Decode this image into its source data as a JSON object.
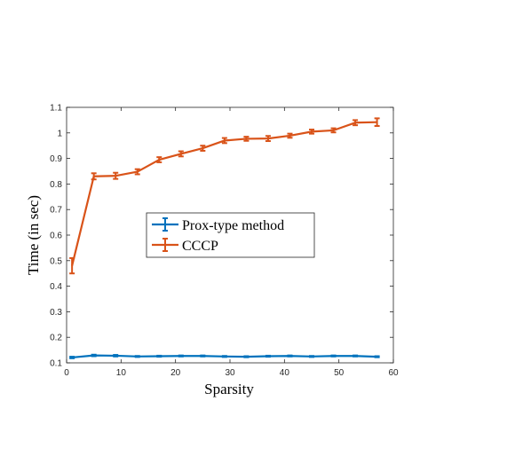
{
  "chart_data": {
    "type": "line",
    "title": "",
    "xlabel": "Sparsity",
    "ylabel": "Time (in sec)",
    "xlim": [
      0,
      60
    ],
    "ylim": [
      0.1,
      1.1
    ],
    "xticks": [
      "0",
      "10",
      "20",
      "30",
      "40",
      "50",
      "60"
    ],
    "yticks": [
      "0.1",
      "0.2",
      "0.3",
      "0.4",
      "0.5",
      "0.6",
      "0.7",
      "0.8",
      "0.9",
      "1",
      "1.1"
    ],
    "grid": false,
    "legend_position": "center-left",
    "x": [
      1,
      5,
      9,
      13,
      17,
      21,
      25,
      29,
      33,
      37,
      41,
      45,
      49,
      53,
      57
    ],
    "series": [
      {
        "name": "Prox-type method",
        "color": "#0072BD",
        "values": [
          0.121,
          0.129,
          0.128,
          0.125,
          0.126,
          0.127,
          0.127,
          0.125,
          0.124,
          0.126,
          0.127,
          0.125,
          0.127,
          0.127,
          0.124
        ],
        "error": [
          0.003,
          0.003,
          0.003,
          0.002,
          0.002,
          0.002,
          0.002,
          0.002,
          0.002,
          0.002,
          0.002,
          0.002,
          0.002,
          0.002,
          0.002
        ]
      },
      {
        "name": "CCCP",
        "color": "#D95319",
        "values": [
          0.48,
          0.83,
          0.832,
          0.848,
          0.895,
          0.918,
          0.94,
          0.97,
          0.977,
          0.978,
          0.989,
          1.005,
          1.01,
          1.04,
          1.042
        ],
        "error": [
          0.03,
          0.012,
          0.012,
          0.01,
          0.01,
          0.01,
          0.01,
          0.01,
          0.008,
          0.01,
          0.008,
          0.008,
          0.008,
          0.01,
          0.015
        ]
      }
    ]
  }
}
